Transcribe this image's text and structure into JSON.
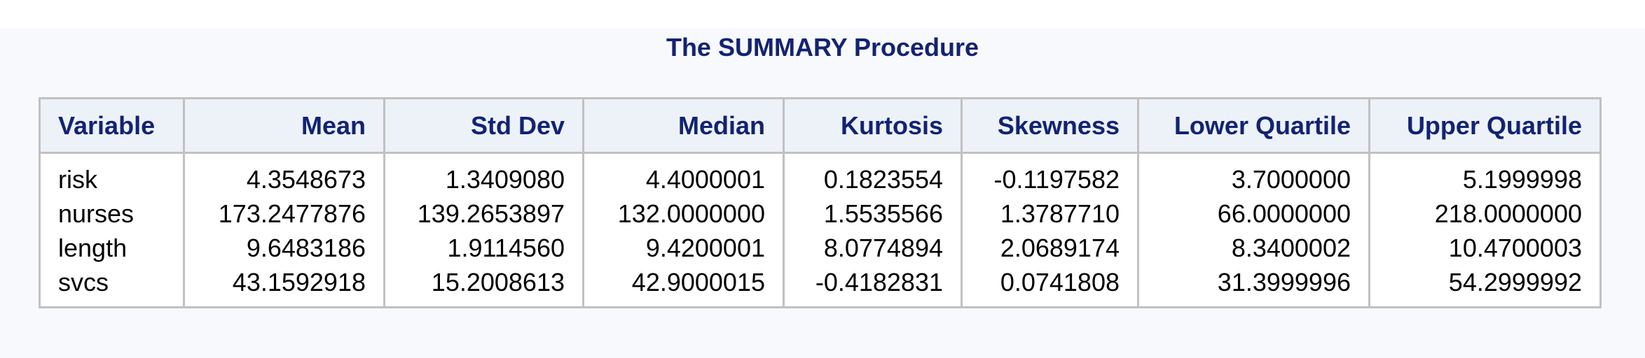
{
  "title": "The SUMMARY Procedure",
  "table": {
    "headers": [
      "Variable",
      "Mean",
      "Std Dev",
      "Median",
      "Kurtosis",
      "Skewness",
      "Lower Quartile",
      "Upper Quartile"
    ],
    "rows": [
      [
        "risk",
        "4.3548673",
        "1.3409080",
        "4.4000001",
        "0.1823554",
        "-0.1197582",
        "3.7000000",
        "5.1999998"
      ],
      [
        "nurses",
        "173.2477876",
        "139.2653897",
        "132.0000000",
        "1.5535566",
        "1.3787710",
        "66.0000000",
        "218.0000000"
      ],
      [
        "length",
        "9.6483186",
        "1.9114560",
        "9.4200001",
        "8.0774894",
        "2.0689174",
        "8.3400002",
        "10.4700003"
      ],
      [
        "svcs",
        "43.1592918",
        "15.2008613",
        "42.9000015",
        "-0.4182831",
        "0.0741808",
        "31.3999996",
        "54.2999992"
      ]
    ]
  }
}
